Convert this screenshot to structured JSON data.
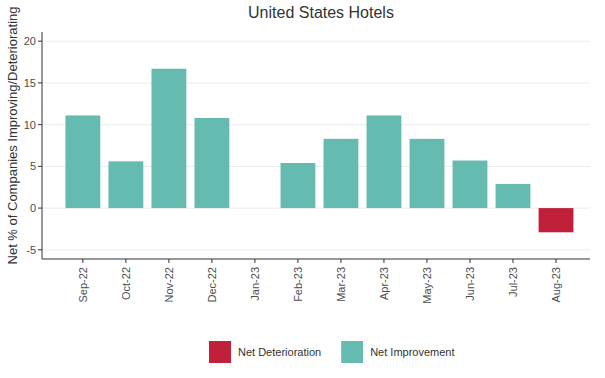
{
  "chart_data": {
    "type": "bar",
    "title": "United States Hotels",
    "y_label": "Net % of Companies Improving/Deteriorating",
    "categories": [
      "Sep-22",
      "Oct-22",
      "Nov-22",
      "Dec-22",
      "Jan-23",
      "Feb-23",
      "Mar-23",
      "Apr-23",
      "May-23",
      "Jun-23",
      "Jul-23",
      "Aug-23"
    ],
    "series": [
      {
        "name": "Net Deterioration",
        "color": "#c0203a",
        "values": [
          null,
          null,
          null,
          null,
          null,
          null,
          null,
          null,
          null,
          null,
          null,
          -2.9
        ]
      },
      {
        "name": "Net Improvement",
        "color": "#66bbb0",
        "values": [
          11.1,
          5.6,
          16.7,
          10.8,
          0,
          5.4,
          8.3,
          11.1,
          8.3,
          5.7,
          2.9,
          null
        ]
      }
    ],
    "ylim": [
      -6.1,
      21.1
    ],
    "yticks": [
      -5,
      0,
      5,
      10,
      15,
      20
    ],
    "grid": true,
    "legend": "bottom"
  }
}
